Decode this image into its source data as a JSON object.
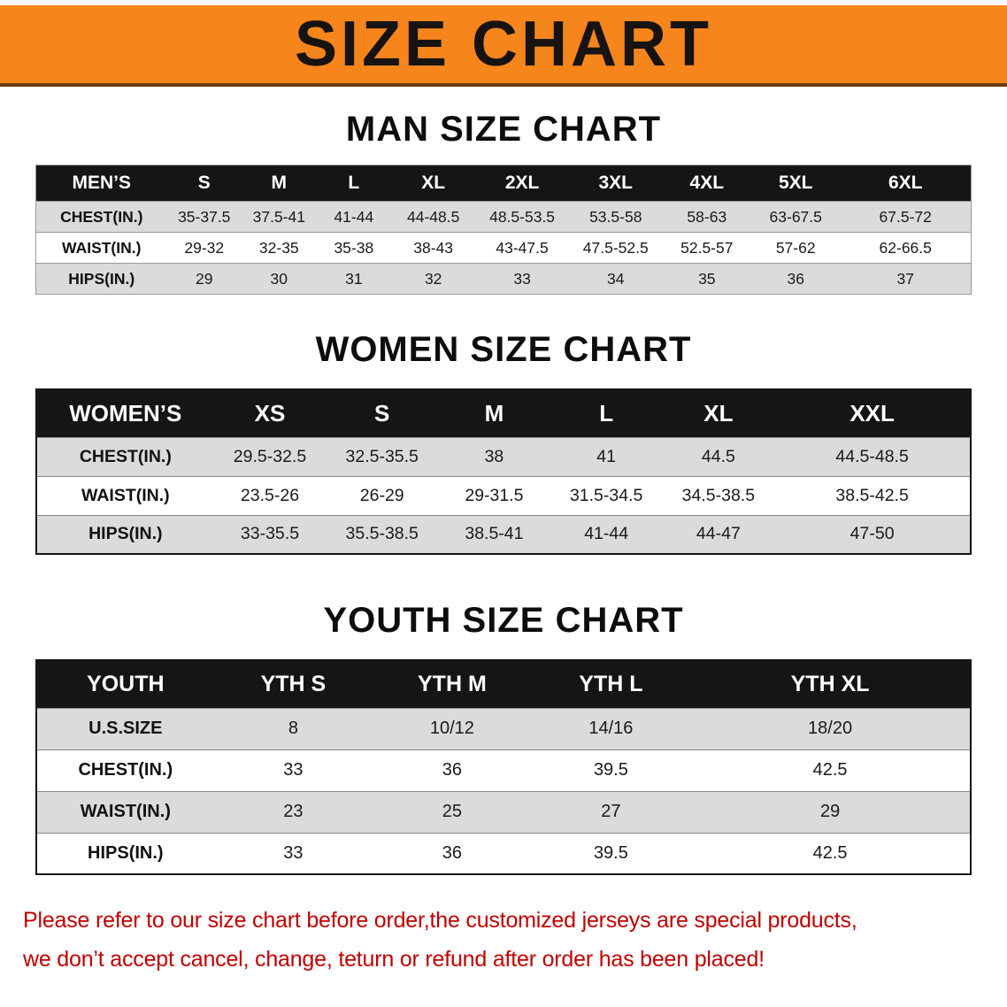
{
  "banner": {
    "title": "SIZE CHART"
  },
  "men": {
    "heading": "MAN SIZE CHART",
    "table": {
      "header": [
        "MEN’S",
        "S",
        "M",
        "L",
        "XL",
        "2XL",
        "3XL",
        "4XL",
        "5XL",
        "6XL"
      ],
      "rows": [
        [
          "CHEST(IN.)",
          "35-37.5",
          "37.5-41",
          "41-44",
          "44-48.5",
          "48.5-53.5",
          "53.5-58",
          "58-63",
          "63-67.5",
          "67.5-72"
        ],
        [
          "WAIST(IN.)",
          "29-32",
          "32-35",
          "35-38",
          "38-43",
          "43-47.5",
          "47.5-52.5",
          "52.5-57",
          "57-62",
          "62-66.5"
        ],
        [
          "HIPS(IN.)",
          "29",
          "30",
          "31",
          "32",
          "33",
          "34",
          "35",
          "36",
          "37"
        ]
      ]
    }
  },
  "women": {
    "heading": "WOMEN SIZE CHART",
    "table": {
      "header": [
        "WOMEN’S",
        "XS",
        "S",
        "M",
        "L",
        "XL",
        "XXL"
      ],
      "rows": [
        [
          "CHEST(IN.)",
          "29.5-32.5",
          "32.5-35.5",
          "38",
          "41",
          "44.5",
          "44.5-48.5"
        ],
        [
          "WAIST(IN.)",
          "23.5-26",
          "26-29",
          "29-31.5",
          "31.5-34.5",
          "34.5-38.5",
          "38.5-42.5"
        ],
        [
          "HIPS(IN.)",
          "33-35.5",
          "35.5-38.5",
          "38.5-41",
          "41-44",
          "44-47",
          "47-50"
        ]
      ]
    }
  },
  "youth": {
    "heading": "YOUTH SIZE CHART",
    "table": {
      "header": [
        "YOUTH",
        "YTH S",
        "YTH M",
        "YTH L",
        "YTH XL"
      ],
      "rows": [
        [
          "U.S.SIZE",
          "8",
          "10/12",
          "14/16",
          "18/20"
        ],
        [
          "CHEST(IN.)",
          "33",
          "36",
          "39.5",
          "42.5"
        ],
        [
          "WAIST(IN.)",
          "23",
          "25",
          "27",
          "29"
        ],
        [
          "HIPS(IN.)",
          "33",
          "36",
          "39.5",
          "42.5"
        ]
      ]
    }
  },
  "footer": {
    "line1": "Please refer to our size chart before order,the customized jerseys are special products,",
    "line2": "we don’t accept cancel, change, teturn or refund after order has been placed!"
  },
  "colors": {
    "banner_orange": "#F6851C",
    "banner_text": "#171310",
    "header_black": "#151515",
    "row_gray": "#DBDBDB",
    "footer_red": "#C00000"
  }
}
